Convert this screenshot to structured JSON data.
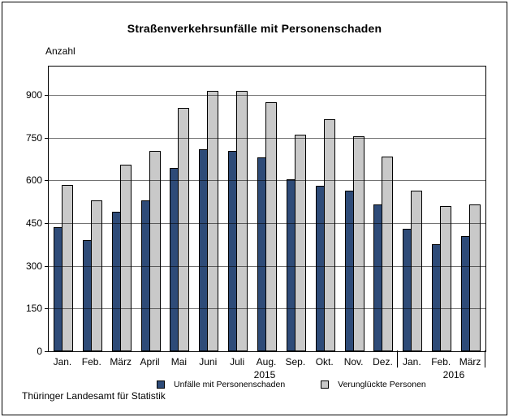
{
  "chart_data": {
    "type": "bar",
    "title": "Straßenverkehrsunfälle mit Personenschaden",
    "ylabel": "Anzahl",
    "categories": [
      "Jan.",
      "Feb.",
      "März",
      "April",
      "Mai",
      "Juni",
      "Juli",
      "Aug.",
      "Sep.",
      "Okt.",
      "Nov.",
      "Dez.",
      "Jan.",
      "Feb.",
      "März"
    ],
    "year_groups": [
      {
        "label": "2015",
        "from": 0,
        "to": 12
      },
      {
        "label": "2016",
        "from": 12,
        "to": 15
      }
    ],
    "series": [
      {
        "name": "Unfälle mit Personenschaden",
        "color": "#2E4B78",
        "values": [
          435,
          390,
          490,
          530,
          645,
          710,
          705,
          680,
          605,
          580,
          565,
          515,
          430,
          375,
          405
        ]
      },
      {
        "name": "Verunglückte Personen",
        "color": "#C9C9C9",
        "values": [
          585,
          530,
          655,
          705,
          855,
          915,
          915,
          875,
          760,
          815,
          755,
          685,
          565,
          510,
          515
        ]
      }
    ],
    "ylim": [
      0,
      1000
    ],
    "yticks": [
      0,
      150,
      300,
      450,
      600,
      750,
      900
    ],
    "grid": true,
    "legend_position": "bottom"
  },
  "footer": {
    "source": "Thüringer Landesamt für Statistik"
  }
}
